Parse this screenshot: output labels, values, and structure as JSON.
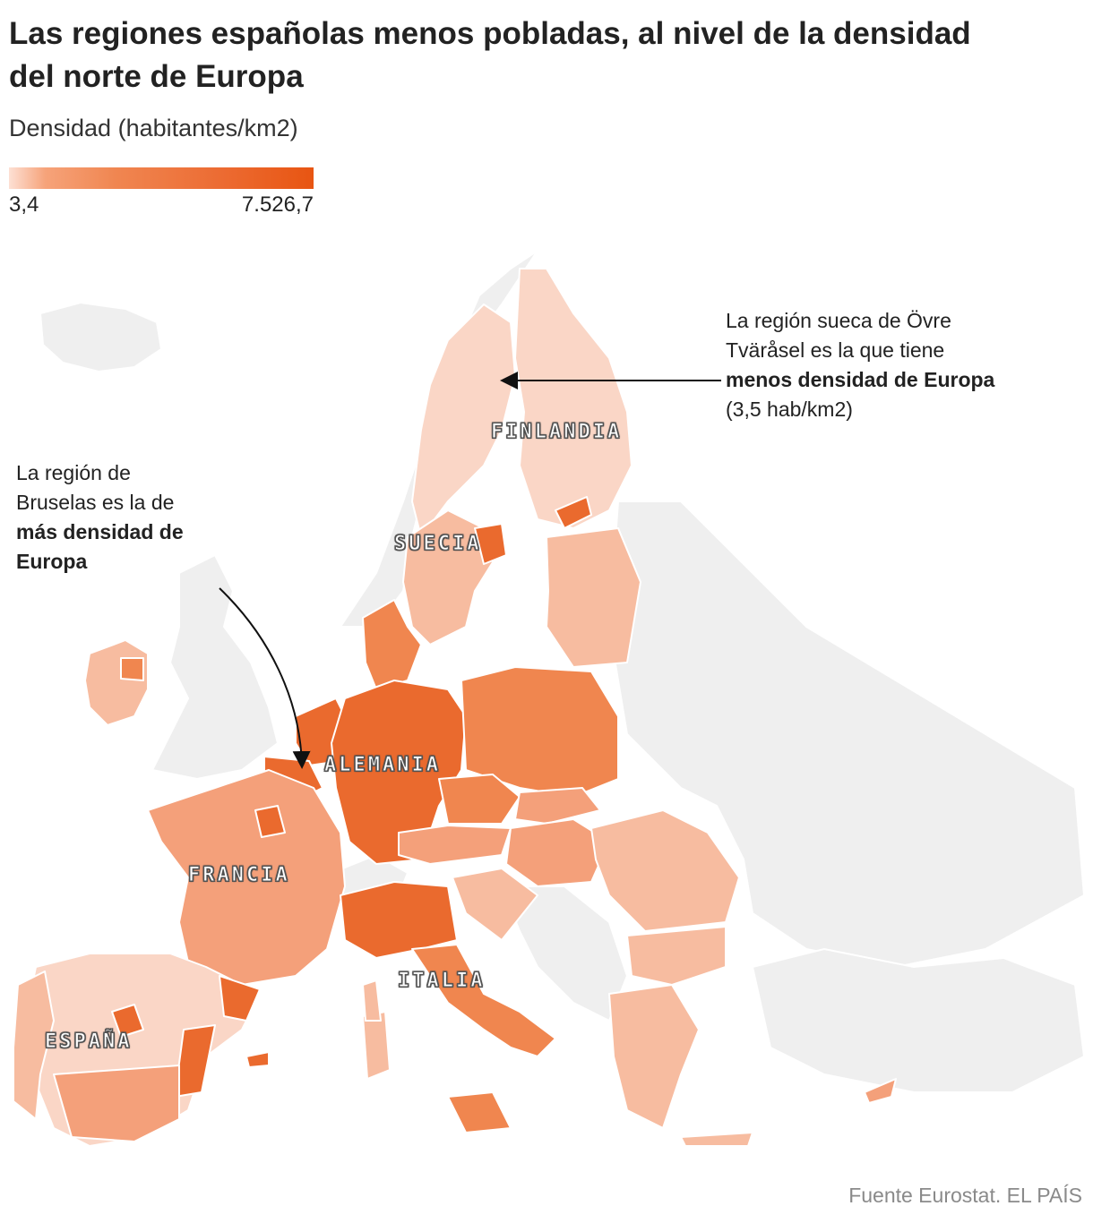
{
  "title": "Las regiones españolas menos pobladas, al nivel de la densidad del norte de Europa",
  "subtitle": "Densidad (habitantes/km2)",
  "legend": {
    "min_label": "3,4",
    "max_label": "7.526,7",
    "min_color": "#fde0d4",
    "max_color": "#e85512"
  },
  "annotations": {
    "sweden": {
      "line1": "La región sueca de Övre",
      "line2": "Tväråsel es la que tiene",
      "bold": "menos densidad de Europa",
      "line3": "(3,5 hab/km2)"
    },
    "brussels": {
      "line1": "La región de",
      "line2": "Bruselas es la de",
      "bold1": "más densidad de",
      "bold2": "Europa"
    }
  },
  "countries": {
    "finlandia": "FINLANDIA",
    "suecia": "SUECIA",
    "alemania": "ALEMANIA",
    "francia": "FRANCIA",
    "italia": "ITALIA",
    "espana": "ESPAÑA"
  },
  "source": "Fuente Eurostat. EL PAÍS",
  "colors": {
    "no_data": "#efefef",
    "very_low": "#fad6c6",
    "low": "#f7bca0",
    "mid": "#f4a07a",
    "high": "#f0864f",
    "very_high": "#ea6a2e",
    "border": "#ffffff"
  }
}
